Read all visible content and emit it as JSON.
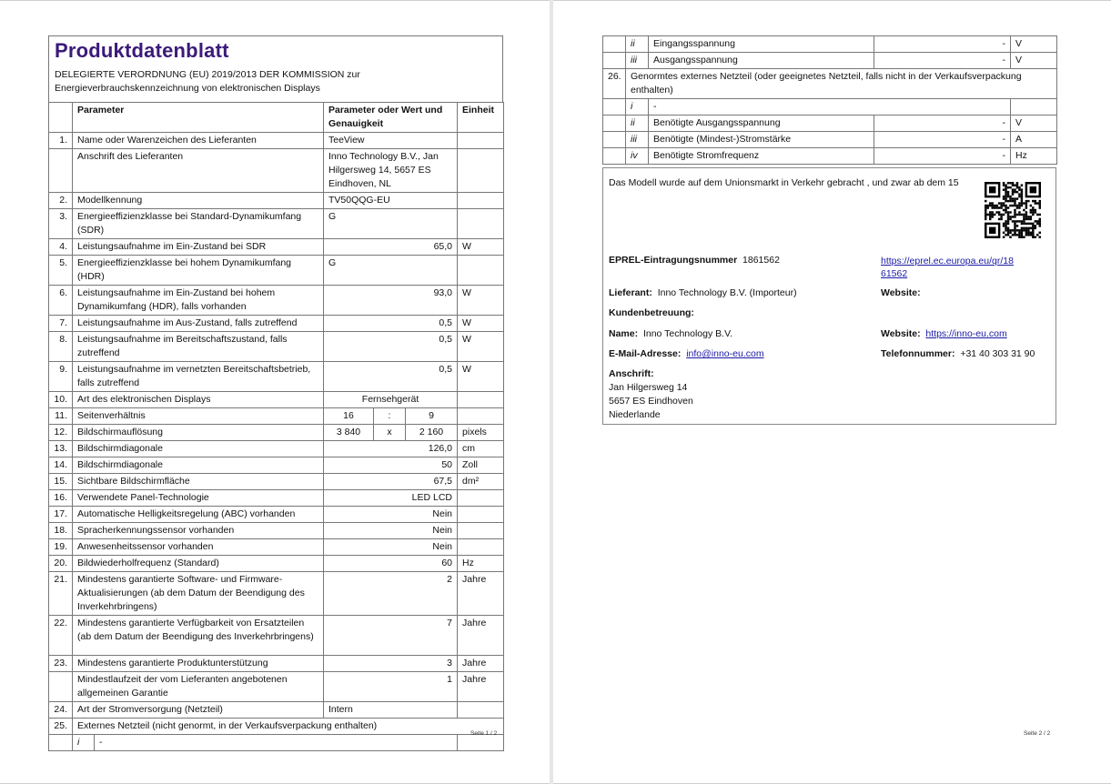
{
  "page1": {
    "title": "Produktdatenblatt",
    "subtitle_line1": "DELEGIERTE VERORDNUNG (EU) 2019/2013 DER KOMMISSION zur",
    "subtitle_line2": "Energieverbrauchskennzeichnung von elektronischen Displays",
    "header": {
      "parameter": "Parameter",
      "value": "Parameter oder Wert und Genauigkeit",
      "unit": "Einheit"
    },
    "rows": [
      {
        "num": "1.",
        "param": "Name oder Warenzeichen des Lieferanten",
        "value": "TeeView",
        "unit": "",
        "align": "l"
      },
      {
        "num": "",
        "param": "Anschrift des Lieferanten",
        "value": "Inno Technology B.V., Jan Hilgersweg 14, 5657 ES Eindhoven, NL",
        "unit": "",
        "align": "l"
      },
      {
        "num": "2.",
        "param": "Modellkennung",
        "value": "TV50QQG-EU",
        "unit": "",
        "align": "l"
      },
      {
        "num": "3.",
        "param": "Energieeffizienzklasse bei Standard-Dynamikumfang (SDR)",
        "value": "G",
        "unit": "",
        "align": "l"
      },
      {
        "num": "4.",
        "param": "Leistungsaufnahme im Ein-Zustand bei SDR",
        "value": "65,0",
        "unit": "W",
        "align": "r"
      },
      {
        "num": "5.",
        "param": "Energieeffizienzklasse bei hohem Dynamikumfang (HDR)",
        "value": "G",
        "unit": "",
        "align": "l"
      },
      {
        "num": "6.",
        "param": "Leistungsaufnahme im Ein-Zustand bei hohem Dynamikumfang (HDR), falls vorhanden",
        "value": "93,0",
        "unit": "W",
        "align": "r"
      },
      {
        "num": "7.",
        "param": "Leistungsaufnahme im Aus-Zustand, falls zutreffend",
        "value": "0,5",
        "unit": "W",
        "align": "r"
      },
      {
        "num": "8.",
        "param": "Leistungsaufnahme im Bereitschaftszustand, falls zutreffend",
        "value": "0,5",
        "unit": "W",
        "align": "r"
      },
      {
        "num": "9.",
        "param": "Leistungsaufnahme im vernetzten Bereitschaftsbetrieb, falls zutreffend",
        "value": "0,5",
        "unit": "W",
        "align": "r"
      },
      {
        "num": "10.",
        "param": "Art des elektronischen Displays",
        "value": "Fernsehgerät",
        "unit": "",
        "align": "c"
      },
      {
        "num": "11.",
        "param": "Seitenverhältnis",
        "split": [
          "16",
          ":",
          "9"
        ],
        "unit": ""
      },
      {
        "num": "12.",
        "param": "Bildschirmauflösung",
        "split": [
          "3 840",
          "x",
          "2 160"
        ],
        "unit": "pixels"
      },
      {
        "num": "13.",
        "param": "Bildschirmdiagonale",
        "value": "126,0",
        "unit": "cm",
        "align": "r"
      },
      {
        "num": "14.",
        "param": "Bildschirmdiagonale",
        "value": "50",
        "unit": "Zoll",
        "align": "r"
      },
      {
        "num": "15.",
        "param": "Sichtbare Bildschirmfläche",
        "value": "67,5",
        "unit": "dm²",
        "align": "r"
      },
      {
        "num": "16.",
        "param": "Verwendete Panel-Technologie",
        "value": "LED LCD",
        "unit": "",
        "align": "r"
      },
      {
        "num": "17.",
        "param": "Automatische Helligkeitsregelung (ABC) vorhanden",
        "value": "Nein",
        "unit": "",
        "align": "r"
      },
      {
        "num": "18.",
        "param": "Spracherkennungssensor vorhanden",
        "value": "Nein",
        "unit": "",
        "align": "r"
      },
      {
        "num": "19.",
        "param": "Anwesenheitssensor vorhanden",
        "value": "Nein",
        "unit": "",
        "align": "r"
      },
      {
        "num": "20.",
        "param": "Bildwiederholfrequenz (Standard)",
        "value": "60",
        "unit": "Hz",
        "align": "r"
      },
      {
        "num": "21.",
        "param": "Mindestens garantierte Software- und Firmware-Aktualisierungen (ab dem Datum der Beendigung des Inverkehrbringens)",
        "value": "2",
        "unit": "Jahre",
        "align": "r"
      },
      {
        "num": "22.",
        "param": "Mindestens garantierte Verfügbarkeit von Ersatzteilen (ab dem Datum der Beendigung des Inverkehrbringens)",
        "value": "7",
        "unit": "Jahre",
        "align": "r"
      },
      {
        "num": "23.",
        "param": "Mindestens garantierte Produktunterstützung",
        "value": "3",
        "unit": "Jahre",
        "align": "r"
      },
      {
        "num": "",
        "param": "Mindestlaufzeit der vom Lieferanten angebotenen allgemeinen Garantie",
        "value": "1",
        "unit": "Jahre",
        "align": "r"
      },
      {
        "num": "24.",
        "param": "Art der Stromversorgung (Netzteil)",
        "value": "Intern",
        "unit": "",
        "align": "l"
      },
      {
        "num": "25.",
        "param": "Externes Netzteil (nicht genormt, in der Verkaufsverpackung enthalten)",
        "span": true
      }
    ],
    "sub25": {
      "roman": "i",
      "text": "-"
    },
    "footer": "Seite 1 / 2"
  },
  "page2": {
    "rows": [
      {
        "num": "",
        "roman": "ii",
        "label": "Eingangsspannung",
        "value": "-",
        "unit": "V"
      },
      {
        "num": "",
        "roman": "iii",
        "label": "Ausgangsspannung",
        "value": "-",
        "unit": "V"
      },
      {
        "num": "26.",
        "span": "Genormtes externes Netzteil (oder geeignetes Netzteil, falls nicht in der Verkaufsverpackung enthalten)"
      },
      {
        "num": "",
        "roman": "i",
        "dash": "-"
      },
      {
        "num": "",
        "roman": "ii",
        "label": "Benötigte Ausgangsspannung",
        "value": "-",
        "unit": "V"
      },
      {
        "num": "",
        "roman": "iii",
        "label": "Benötigte (Mindest-)Stromstärke",
        "value": "-",
        "unit": "A"
      },
      {
        "num": "",
        "roman": "iv",
        "label": "Benötigte Stromfrequenz",
        "value": "-",
        "unit": "Hz"
      }
    ],
    "info": {
      "market_text": "Das Modell wurde auf dem Unionsmarkt in Verkehr gebracht , und zwar ab dem 15",
      "eprel_label": "EPREL-Eintragungsnummer",
      "eprel_number": "1861562",
      "eprel_link_line1": "https://eprel.ec.europa.eu/qr/18",
      "eprel_link_line2": "61562",
      "supplier_label": "Lieferant:",
      "supplier_value": "Inno Technology B.V. (Importeur)",
      "website_label_1": "Website:",
      "customer_service_label": "Kundenbetreuung:",
      "name_label": "Name:",
      "name_value": "Inno Technology B.V.",
      "website_label_2": "Website:",
      "website_value": "https://inno-eu.com",
      "email_label": "E-Mail-Adresse:",
      "email_value": "info@inno-eu.com",
      "phone_label": "Telefonnummer:",
      "phone_value": "+31 40 303 31 90",
      "address_label": "Anschrift:",
      "address_line1": "Jan Hilgersweg 14",
      "address_line2": "5657 ES Eindhoven",
      "address_line3": "Niederlande",
      "qr_icon": "qr-code-icon"
    },
    "footer": "Seite 2 / 2"
  }
}
